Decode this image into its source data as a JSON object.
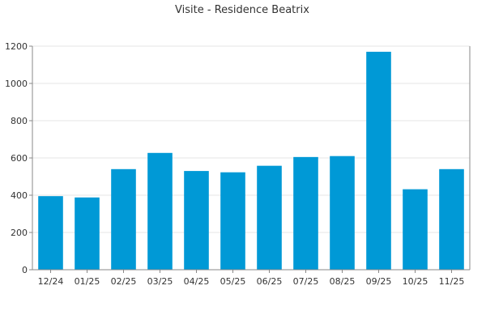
{
  "chart_data": {
    "type": "bar",
    "title": "Visite - Residence Beatrix",
    "xlabel": "",
    "ylabel": "",
    "categories": [
      "12/24",
      "01/25",
      "02/25",
      "03/25",
      "04/25",
      "05/25",
      "06/25",
      "07/25",
      "08/25",
      "09/25",
      "10/25",
      "11/25"
    ],
    "values": [
      395,
      388,
      540,
      627,
      530,
      523,
      558,
      605,
      610,
      1170,
      432,
      540
    ],
    "ylim": [
      0,
      1200
    ],
    "yticks": [
      0,
      200,
      400,
      600,
      800,
      1000,
      1200
    ],
    "grid": true,
    "bar_color": "#0099d6"
  }
}
